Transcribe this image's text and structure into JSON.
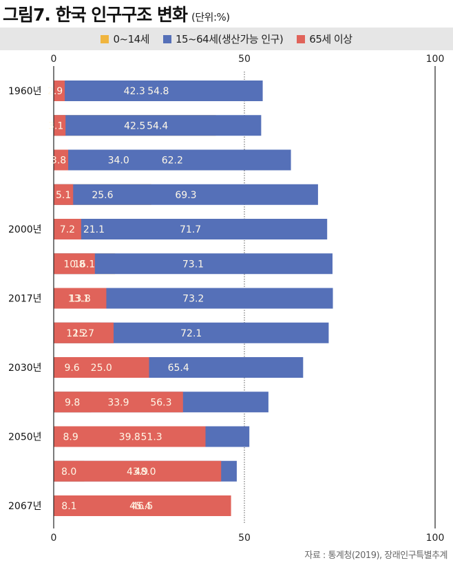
{
  "header": {
    "title": "그림7. 한국 인구구조 변화",
    "unit": "(단위:%)"
  },
  "source": "자료 : 통계청(2019), 장래인구특별추계",
  "chart_data": {
    "type": "bar",
    "orientation": "horizontal",
    "stacked": true,
    "title": "그림7. 한국 인구구조 변화",
    "unit": "%",
    "xlabel": "",
    "ylabel": "",
    "xlim": [
      0,
      100
    ],
    "xticks": [
      0,
      50,
      100
    ],
    "grid": "dotted line at 50",
    "legend_position": "top",
    "categories": [
      "1960년",
      "",
      "",
      "",
      "2000년",
      "",
      "2017년",
      "",
      "2030년",
      "",
      "2050년",
      "",
      "2067년"
    ],
    "series": [
      {
        "name": "0~14세",
        "color": "#f0b53f",
        "values": [
          42.3,
          42.5,
          34.0,
          25.6,
          21.1,
          16.1,
          13.1,
          12.2,
          9.6,
          9.8,
          8.9,
          8.0,
          8.1
        ]
      },
      {
        "name": "15~64세(생산가능 인구)",
        "color": "#5570b8",
        "values": [
          54.8,
          54.4,
          62.2,
          69.3,
          71.7,
          73.1,
          73.2,
          72.1,
          65.4,
          56.3,
          51.3,
          48.0,
          45.4
        ]
      },
      {
        "name": "65세 이상",
        "color": "#e0635a",
        "values": [
          2.9,
          3.1,
          3.8,
          5.1,
          7.2,
          10.8,
          13.8,
          15.7,
          25.0,
          33.9,
          39.8,
          43.9,
          46.5
        ]
      }
    ]
  }
}
